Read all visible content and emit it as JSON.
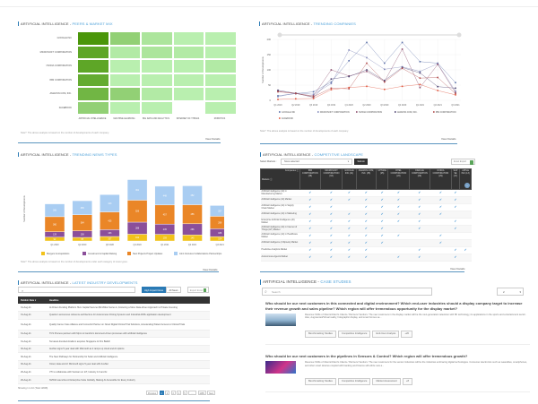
{
  "peers": {
    "title_prefix": "ARTIFICIAL INTELLIGENCE - ",
    "title_accent": "PEERS & MARKET MIX",
    "rows": [
      "GOOGLE INC",
      "MICROSOFT CORPORATION",
      "NVIDIA CORPORATION",
      "IBM CORPORATION",
      "AMAZON.COM, INC.",
      "FACEBOOK"
    ],
    "cols": [
      "ARTIFICIAL INTELLIGENCE",
      "MACHINE LEARNING",
      "BIG DATA AND ANALYTICS",
      "INTERNET OF THINGS",
      "ROBOTICS"
    ],
    "intensity": [
      [
        1.0,
        0.45,
        0.25,
        0.15,
        0.15
      ],
      [
        0.85,
        0.2,
        0.25,
        0.2,
        0.15
      ],
      [
        0.85,
        0.15,
        0.15,
        0.15,
        0.2
      ],
      [
        0.8,
        0.15,
        0.15,
        0.15,
        0.15
      ],
      [
        0.7,
        0.45,
        0.2,
        0.15,
        0.15
      ],
      [
        0.45,
        0.15,
        0.15,
        null,
        0.15
      ]
    ],
    "note": "Note*: The above analysis is based on the number of developments of each company.",
    "view_details": "View Details"
  },
  "trending_companies": {
    "title_prefix": "ARTIFICIAL INTELLIGENCE - ",
    "title_accent": "TRENDING COMPANIES",
    "note": "Note*: The above analysis is based on the number of developments of each company.",
    "view_details": "View Details"
  },
  "news_types": {
    "title_prefix": "ARTIFICIAL INTELLIGENCE - ",
    "title_accent": "TRENDING NEWS TYPES",
    "note": "Note*: The above analysis is based on the number of developments under each category of news types.",
    "view_details": "View Details"
  },
  "competitive": {
    "title_prefix": "ARTIFICIAL INTELLIGENCE - ",
    "title_accent": "COMPETITIVE LANDSCAPE",
    "select_label": "Select Markets :",
    "select_value": "None selected",
    "submit": "Submit",
    "excel": "Excel Export",
    "corner_top": "Companies",
    "corner_bottom": "Markets",
    "companies": [
      "IBM CORPORATION (38)",
      "MICROSOFT CORPORATION (33)",
      "GOOGLE INC (41)",
      "AMAZON.COM, INC. (35)",
      "UPTAKE (25)",
      "INTEL CORPORATION (23)",
      "ORACLE CORPORATION (29)",
      "NVIDIA CORPORATION (29)",
      "SAP SE (17)",
      "APPLE INC (13)"
    ],
    "markets": [
      {
        "name": "Artificial Intelligence (AI) in Manufacturing Market",
        "checks": [
          1,
          1,
          1,
          1,
          1,
          1,
          1,
          1,
          1,
          0
        ]
      },
      {
        "name": "Artificial Intelligence (AI) Market",
        "checks": [
          1,
          1,
          1,
          1,
          1,
          1,
          1,
          1,
          1,
          0
        ]
      },
      {
        "name": "Artificial Intelligence (AI) in Supply Chain Market",
        "checks": [
          1,
          1,
          0,
          1,
          1,
          1,
          1,
          1,
          1,
          0
        ]
      },
      {
        "name": "Artificial Intelligence (AI) in Marketing",
        "checks": [
          1,
          1,
          1,
          1,
          1,
          1,
          1,
          1,
          0,
          0
        ]
      },
      {
        "name": "Enterprise Artificial Intelligence (AI) Market",
        "checks": [
          1,
          1,
          1,
          1,
          1,
          1,
          1,
          0,
          1,
          0
        ]
      },
      {
        "name": "Artificial Intelligence (AI) in Internet of Things (IoT) Market",
        "checks": [
          1,
          1,
          1,
          1,
          1,
          0,
          1,
          0,
          1,
          0
        ]
      },
      {
        "name": "Artificial Intelligence (AI) in Healthcare Market",
        "checks": [
          1,
          1,
          1,
          1,
          1,
          1,
          0,
          1,
          0,
          0
        ]
      },
      {
        "name": "Artificial Intelligence (Chipsets) Market",
        "checks": [
          1,
          1,
          1,
          1,
          1,
          0,
          0,
          1,
          0,
          0
        ]
      },
      {
        "name": "Predictive Analytics Market",
        "checks": [
          1,
          1,
          1,
          1,
          0,
          0,
          1,
          0,
          1,
          1
        ]
      },
      {
        "name": "Autonomous Agents Market",
        "checks": [
          1,
          1,
          1,
          1,
          0,
          1,
          1,
          0,
          1,
          0
        ]
      }
    ],
    "check_glyph": "✔",
    "view_details": "View Details"
  },
  "news": {
    "title_prefix": "ARTIFICIAL INTELLIGENCE - ",
    "title_accent": "LATEST INDUSTRY DEVELOPMENTS",
    "search_placeholder": "",
    "high_impact": "High Impact News",
    "all_news": "All News",
    "export": "Export Excel",
    "col_date": "Publish Date",
    "col_headline": "Headline",
    "rows": [
      {
        "date": "31-Aug-21",
        "headline": "AI-Driven Funding Platform Hum Capital Secures $9 Million Series A, Fostering a More Data-driven Approach to Private Investing"
      },
      {
        "date": "31-Aug-21",
        "headline": "Quantum announces reference architecture for Autonomous Driving Systems and Industrial AI/ML application development"
      },
      {
        "date": "31-Aug-21",
        "headline": "Quality Cancer Care Alliance and ConcertAI Partner on Novel Digital Clinical Trial Solutions, Accelerating Patient Access to Clinical Trials"
      },
      {
        "date": "31-Aug-21",
        "headline": "TCS Process partners with Mpro to transform document-driven processes with artificial intelligence"
      },
      {
        "date": "31-Aug-21",
        "headline": "Temasek-founded Azadium acquires Singapore AI firm Bailofr"
      },
      {
        "date": "30-Aug-21",
        "headline": "AusNet signs 5-year deal with Microsoft as it ramps up cloud and AI options"
      },
      {
        "date": "30-Aug-21",
        "headline": "The New Pathways for Partnership for Solar and Artificial Intelligence"
      },
      {
        "date": "30-Aug-21",
        "headline": "Cloud, data and AI: Microsoft signs 5-year deal with AusNet"
      },
      {
        "date": "29-Aug-21",
        "headline": "VTI to collaborate with Vietnam on IoT, Industry 4.0 and AI"
      },
      {
        "date": "29-Aug-21",
        "headline": "NVIDIA Launches AI Enterprise Suite Globally, Making AI Accessible for Every Industry"
      }
    ],
    "showing": "Showing 1 to 10 (Total 12848)",
    "pages": [
      "Previous",
      "1",
      "2",
      "3",
      "4",
      "5",
      "...",
      "1285",
      "Next"
    ],
    "active_page": "1"
  },
  "case_studies": {
    "title_prefix": "ARTIFICIAL INTELLIGENCE - ",
    "title_accent": "CASE STUDIES",
    "search_placeholder": "Search",
    "page_select": "2",
    "items": [
      {
        "question": "Who should be our next customers in this connected and digital environment? Which end-user industries should a display company target to increase their revenue growth and sales pipeline? Which region will offer tremendous opportunity for the display market?",
        "text": "Revenue Shifts of Clients/Client's Clients / Partners/ Vendors: The new customers in the display market will be the next-generation television with 8K technology, its applications in the sports and entertainment sector. Also, Augmented/Virtual reality, holographic display, and smart homes se...",
        "tags": [
          "Benchmarking Studies",
          "Competitive Intelligence",
          "End-User Analysis",
          "+20"
        ]
      },
      {
        "question": "Who should be our next customers in the pipelines in Sensors & Control? Which region will offer tremendous growth?",
        "text": "Revenue Shifts of Clients/Client's Clients / Partners/ Vendors: The new customers for the sensor industries will be the industries embracing digital technologies. Consumer electronics such as wearables, smartphones, and other smart devices coupled with banking and finance will utilize new a...",
        "tags": [
          "Benchmarking Studies",
          "Competitive Intelligence",
          "Market Assessment",
          "+8"
        ]
      }
    ]
  },
  "chart_data": [
    {
      "type": "line",
      "title": "Trending Companies",
      "ylabel": "Number of Developments",
      "xlabel": "",
      "x": [
        "Q1 2019",
        "Q2 2019",
        "Q3 2019",
        "Q4 2019",
        "Q1 2020",
        "Q2 2020",
        "Q3 2020",
        "Q4 2020",
        "Q1 2021",
        "Q2 2021",
        "Q3 2021"
      ],
      "ylim": [
        0,
        200
      ],
      "yticks": [
        0,
        50,
        100,
        150,
        200
      ],
      "legend": "bottom",
      "series": [
        {
          "name": "GOOGLE INC",
          "color": "#5a6fa8",
          "values": [
            15,
            22,
            28,
            60,
            130,
            190,
            122,
            190,
            127,
            122,
            58
          ]
        },
        {
          "name": "MICROSOFT CORPORATION",
          "color": "#7f86b8",
          "values": [
            12,
            24,
            20,
            55,
            165,
            140,
            102,
            110,
            95,
            120,
            30
          ]
        },
        {
          "name": "NVIDIA CORPORATION",
          "color": "#8a4a6a",
          "values": [
            30,
            22,
            15,
            100,
            80,
            95,
            62,
            168,
            42,
            118,
            25
          ]
        },
        {
          "name": "AMAZON.COM, INC.",
          "color": "#4a3f6f",
          "values": [
            33,
            23,
            10,
            70,
            78,
            100,
            65,
            108,
            90,
            45,
            40
          ]
        },
        {
          "name": "IBM CORPORATION",
          "color": "#b04a4a",
          "values": [
            28,
            23,
            12,
            40,
            38,
            122,
            60,
            105,
            73,
            75,
            22
          ]
        },
        {
          "name": "FACEBOOK",
          "color": "#e0563e",
          "values": [
            3,
            5,
            6,
            35,
            42,
            46,
            36,
            46,
            52,
            32,
            18
          ]
        }
      ]
    },
    {
      "type": "bar",
      "stacked": true,
      "title": "Trending News Types",
      "ylabel": "Number of Developments",
      "xlabel": "",
      "categories": [
        "Q1 2020",
        "Q2 2020",
        "Q3 2020",
        "Q4 2020",
        "Q1 2021",
        "Q2 2021",
        "Q3 2021"
      ],
      "legend": "bottom",
      "series": [
        {
          "name": "Mergers & Acquisitions",
          "color": "#f2c21b",
          "values": [
            92,
            85,
            107,
            162,
            159,
            145,
            104
          ]
        },
        {
          "name": "Investment & Capital Raising",
          "color": "#8b4f9a",
          "values": [
            129,
            158,
            163,
            288,
            245,
            266,
            188
          ]
        },
        {
          "name": "New Projects Project Updates",
          "color": "#ea8627",
          "values": [
            360,
            384,
            425,
            526,
            457,
            456,
            299
          ]
        },
        {
          "name": "Joint Ventures Collaborations Partnerships",
          "color": "#a9cdf2",
          "values": [
            306,
            335,
            413,
            491,
            448,
            452,
            257
          ]
        }
      ]
    }
  ]
}
